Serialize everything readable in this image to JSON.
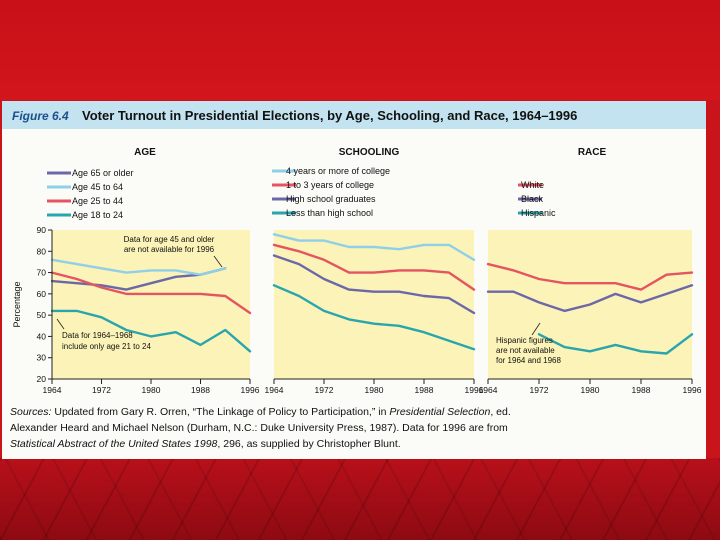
{
  "figure": {
    "label": "Figure 6.4",
    "title": "Voter Turnout in Presidential Elections, by Age, Schooling, and Race, 1964–1996",
    "sources_label": "Sources:",
    "sources_part1": " Updated from Gary R. Orren, “The Linkage of Policy to Participation,” in ",
    "sources_italic1": "Presidential Selection",
    "sources_part2": ", ed. Alexander Heard and Michael Nelson (Durham, N.C.: Duke University Press, 1987). Data for 1996 are from ",
    "sources_italic2": "Statistical Abstract of the United States 1998",
    "sources_part3": ", 296, as supplied by Christopher Blunt."
  },
  "colors": {
    "page_bg": "#c8141a",
    "plot_bg": "#fbf3b8",
    "title_bar": "#c2e3ef",
    "purple": "#6c68a8",
    "lightblue": "#8fd0e8",
    "red": "#e35560",
    "teal": "#2aa5ad"
  },
  "chart_data": [
    {
      "type": "line",
      "title": "AGE",
      "ylabel": "Percentage",
      "ylim": [
        20,
        90
      ],
      "yticks": [
        "90",
        "80",
        "70",
        "60",
        "50",
        "40",
        "30",
        "20"
      ],
      "x": [
        1964,
        1968,
        1972,
        1976,
        1980,
        1984,
        1988,
        1992,
        1996
      ],
      "xticks": [
        "1964",
        "1972",
        "1980",
        "1988",
        "1996"
      ],
      "series": [
        {
          "name": "Age 65 or older",
          "color": "#6c68a8",
          "values": [
            66,
            65,
            64,
            62,
            65,
            68,
            69,
            72,
            null
          ]
        },
        {
          "name": "Age 45 to 64",
          "color": "#8fd0e8",
          "values": [
            76,
            74,
            72,
            70,
            71,
            71,
            69,
            72,
            null
          ]
        },
        {
          "name": "Age 25 to 44",
          "color": "#e35560",
          "values": [
            70,
            67,
            63,
            60,
            60,
            60,
            60,
            59,
            51
          ]
        },
        {
          "name": "Age 18 to 24",
          "color": "#2aa5ad",
          "values": [
            52,
            52,
            49,
            43,
            40,
            42,
            36,
            43,
            33
          ]
        }
      ],
      "annotations": [
        "Data for age 45 and older",
        "are not available for 1996",
        "Data for 1964–1968",
        "include only age 21 to 24"
      ]
    },
    {
      "type": "line",
      "title": "SCHOOLING",
      "ylim": [
        20,
        90
      ],
      "x": [
        1964,
        1968,
        1972,
        1976,
        1980,
        1984,
        1988,
        1992,
        1996
      ],
      "xticks": [
        "1964",
        "1972",
        "1980",
        "1988",
        "1996"
      ],
      "series": [
        {
          "name": "4 years or more of college",
          "color": "#8fd0e8",
          "values": [
            88,
            85,
            85,
            82,
            82,
            81,
            83,
            83,
            76
          ]
        },
        {
          "name": "1 to 3 years of college",
          "color": "#e35560",
          "values": [
            83,
            80,
            76,
            70,
            70,
            71,
            71,
            70,
            62
          ]
        },
        {
          "name": "High school graduates",
          "color": "#6c68a8",
          "values": [
            78,
            74,
            67,
            62,
            61,
            61,
            59,
            58,
            51
          ]
        },
        {
          "name": "Less than high school",
          "color": "#2aa5ad",
          "values": [
            64,
            59,
            52,
            48,
            46,
            45,
            42,
            38,
            34
          ]
        }
      ]
    },
    {
      "type": "line",
      "title": "RACE",
      "ylim": [
        20,
        90
      ],
      "x": [
        1964,
        1968,
        1972,
        1976,
        1980,
        1984,
        1988,
        1992,
        1996
      ],
      "xticks": [
        "1964",
        "1972",
        "1980",
        "1988",
        "1996"
      ],
      "series": [
        {
          "name": "White",
          "color": "#e35560",
          "values": [
            74,
            71,
            67,
            65,
            65,
            65,
            62,
            69,
            70
          ]
        },
        {
          "name": "Black",
          "color": "#6c68a8",
          "values": [
            61,
            61,
            56,
            52,
            55,
            60,
            56,
            60,
            64
          ]
        },
        {
          "name": "Hispanic",
          "color": "#2aa5ad",
          "values": [
            null,
            null,
            41,
            35,
            33,
            36,
            33,
            32,
            41
          ]
        }
      ],
      "annotations": [
        "Hispanic figures",
        "are not available",
        "for 1964 and 1968"
      ]
    }
  ]
}
